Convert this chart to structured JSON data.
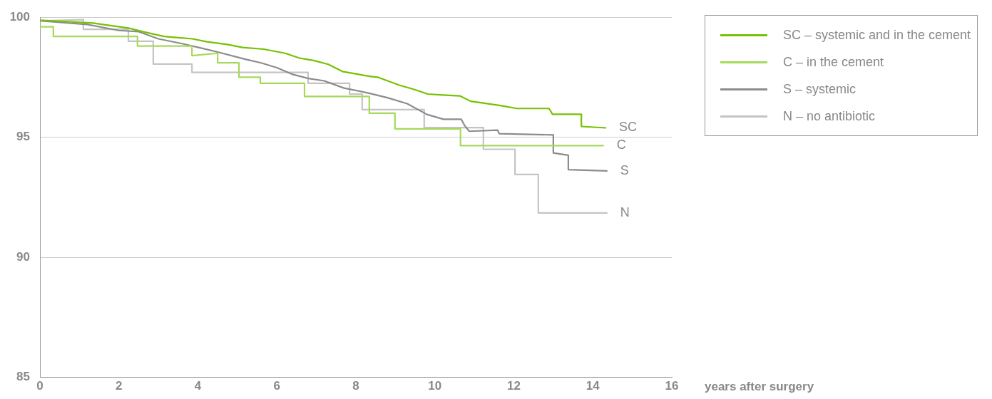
{
  "chart_data": {
    "type": "line",
    "xlabel": "years after surgery",
    "xlim": [
      0,
      16
    ],
    "xticks": [
      0,
      2,
      4,
      6,
      8,
      10,
      12,
      14,
      16
    ],
    "ylim": [
      85,
      100
    ],
    "yticks": [
      85,
      90,
      95,
      100
    ],
    "grid": "y",
    "legend": "top right",
    "marker": "none",
    "line_style": "solid",
    "series": [
      {
        "name": "SC – systemic and in the cement",
        "color": "#76c100",
        "x": [
          0,
          1.34,
          2.24,
          2.6,
          3.14,
          3.86,
          4.23,
          4.77,
          5.13,
          5.67,
          6.21,
          6.57,
          6.93,
          7.3,
          7.66,
          8.38,
          8.56,
          9.1,
          9.46,
          9.82,
          10.28,
          10.64,
          10.91,
          11.63,
          12.08,
          12.89,
          12.98,
          13.71,
          13.71,
          14.34
        ],
        "values": [
          99.88,
          99.76,
          99.55,
          99.4,
          99.2,
          99.1,
          98.98,
          98.86,
          98.74,
          98.67,
          98.5,
          98.3,
          98.2,
          98.04,
          97.74,
          97.53,
          97.5,
          97.17,
          97.0,
          96.8,
          96.75,
          96.72,
          96.5,
          96.33,
          96.2,
          96.2,
          95.96,
          95.96,
          95.45,
          95.39
        ]
      },
      {
        "name": "C – in the cement",
        "color": "#a6d95a",
        "x": [
          0,
          0.34,
          0.34,
          2.47,
          2.47,
          3.85,
          3.85,
          4.5,
          4.5,
          5.04,
          5.04,
          5.58,
          5.58,
          6.7,
          6.7,
          8.34,
          8.34,
          8.99,
          8.99,
          10.65,
          10.65,
          14.28
        ],
        "values": [
          99.6,
          99.6,
          99.2,
          99.2,
          98.8,
          98.8,
          98.4,
          98.5,
          98.1,
          98.1,
          97.5,
          97.5,
          97.25,
          97.25,
          96.7,
          96.7,
          96.0,
          96.0,
          95.35,
          95.35,
          94.65,
          94.65
        ]
      },
      {
        "name": "S – systemic",
        "color": "#8c8c8c",
        "x": [
          0,
          1.2,
          2.0,
          2.5,
          3.0,
          3.6,
          4.0,
          4.5,
          5.2,
          5.6,
          6.0,
          6.4,
          6.8,
          7.2,
          7.7,
          8.3,
          8.8,
          9.3,
          9.8,
          10.22,
          10.67,
          10.75,
          10.87,
          11.59,
          11.63,
          13.0,
          13.0,
          13.38,
          13.38,
          14.37
        ],
        "values": [
          99.85,
          99.7,
          99.45,
          99.4,
          99.1,
          98.9,
          98.75,
          98.55,
          98.25,
          98.1,
          97.9,
          97.62,
          97.45,
          97.35,
          97.05,
          96.85,
          96.65,
          96.4,
          95.95,
          95.75,
          95.75,
          95.5,
          95.25,
          95.3,
          95.15,
          95.1,
          94.35,
          94.25,
          93.65,
          93.6
        ]
      },
      {
        "name": "N – no antibiotic",
        "color": "#c4c4c4",
        "x": [
          0,
          1.1,
          1.1,
          2.24,
          2.24,
          2.87,
          2.87,
          3.85,
          3.85,
          6.79,
          6.79,
          7.84,
          7.84,
          8.16,
          8.16,
          9.73,
          9.73,
          11.23,
          11.23,
          12.03,
          12.03,
          12.62,
          12.62,
          14.37
        ],
        "values": [
          99.85,
          99.9,
          99.5,
          99.5,
          99.0,
          99.0,
          98.05,
          98.05,
          97.7,
          97.7,
          97.25,
          97.25,
          96.8,
          96.8,
          96.15,
          96.15,
          95.4,
          95.4,
          94.5,
          94.5,
          93.45,
          93.45,
          91.85,
          91.85
        ]
      }
    ],
    "annotations": [
      {
        "text": "SC",
        "x": 14.34,
        "y": 95.39
      },
      {
        "text": "C",
        "x": 14.28,
        "y": 94.65
      },
      {
        "text": "S",
        "x": 14.37,
        "y": 93.6
      },
      {
        "text": "N",
        "x": 14.37,
        "y": 91.85
      }
    ]
  }
}
